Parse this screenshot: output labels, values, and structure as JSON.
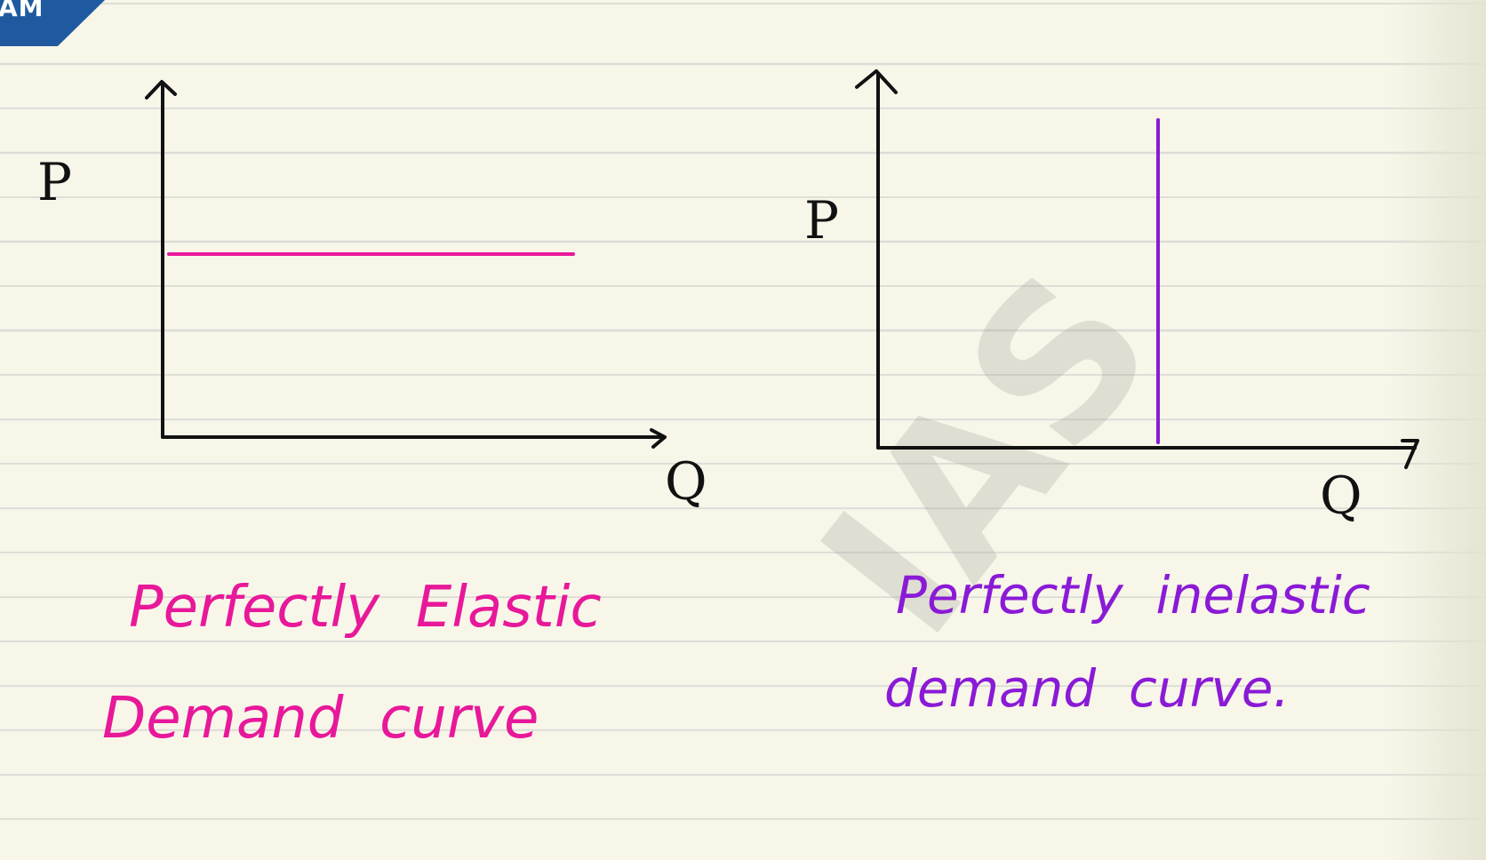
{
  "corner_badge": {
    "text": "AM",
    "color": "#1f5aa0"
  },
  "watermark": {
    "text": "IAS"
  },
  "left_graph": {
    "y_axis_label": "P",
    "x_axis_label": "Q",
    "curve_color": "#e8189a",
    "caption_line1": "Perfectly  Elastic",
    "caption_line2": "Demand  curve"
  },
  "right_graph": {
    "y_axis_label": "P",
    "x_axis_label": "Q",
    "curve_color": "#8a1ad6",
    "caption_line1": "Perfectly  inelastic",
    "caption_line2": "demand  curve."
  }
}
